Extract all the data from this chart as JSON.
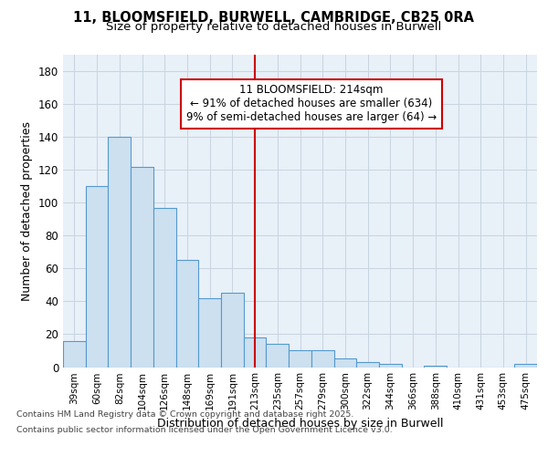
{
  "title_line1": "11, BLOOMSFIELD, BURWELL, CAMBRIDGE, CB25 0RA",
  "title_line2": "Size of property relative to detached houses in Burwell",
  "xlabel": "Distribution of detached houses by size in Burwell",
  "ylabel": "Number of detached properties",
  "categories": [
    "39sqm",
    "60sqm",
    "82sqm",
    "104sqm",
    "126sqm",
    "148sqm",
    "169sqm",
    "191sqm",
    "213sqm",
    "235sqm",
    "257sqm",
    "279sqm",
    "300sqm",
    "322sqm",
    "344sqm",
    "366sqm",
    "388sqm",
    "410sqm",
    "431sqm",
    "453sqm",
    "475sqm"
  ],
  "values": [
    16,
    110,
    140,
    122,
    97,
    65,
    42,
    45,
    18,
    14,
    10,
    10,
    5,
    3,
    2,
    0,
    1,
    0,
    0,
    0,
    2
  ],
  "bar_color": "#cce0f0",
  "bar_edge_color": "#5599cc",
  "highlight_index": 8,
  "highlight_line_color": "#cc0000",
  "annotation_box_color": "#cc0000",
  "annotation_text_line1": "11 BLOOMSFIELD: 214sqm",
  "annotation_text_line2": "← 91% of detached houses are smaller (634)",
  "annotation_text_line3": "9% of semi-detached houses are larger (64) →",
  "ylim": [
    0,
    190
  ],
  "yticks": [
    0,
    20,
    40,
    60,
    80,
    100,
    120,
    140,
    160,
    180
  ],
  "footnote_line1": "Contains HM Land Registry data © Crown copyright and database right 2025.",
  "footnote_line2": "Contains public sector information licensed under the Open Government Licence v3.0.",
  "bg_color": "#ffffff",
  "plot_bg_color": "#e8f0f8",
  "grid_color": "#c8d4e0"
}
